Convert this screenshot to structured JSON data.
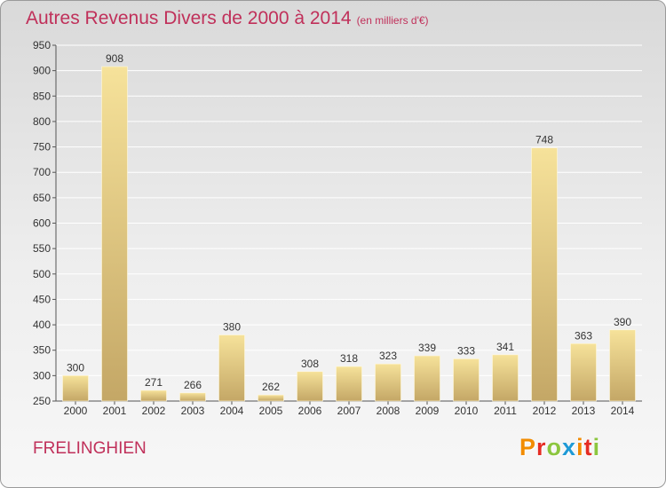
{
  "title": {
    "main": "Autres Revenus Divers de 2000 à 2014",
    "unit": "(en milliers d'€)"
  },
  "commune": "FRELINGHIEN",
  "logo": {
    "letters": [
      "P",
      "r",
      "o",
      "x",
      "i",
      "t",
      "i"
    ],
    "colors": [
      "#f28c00",
      "#e52d24",
      "#8cc63f",
      "#1f9ad6",
      "#f28c00",
      "#e52d24",
      "#8cc63f"
    ]
  },
  "colors": {
    "accent": "#c0305a",
    "bar_light": "#f6e29a",
    "bar_dark": "#c4a766",
    "grid": "#ffffff"
  },
  "chart_data": {
    "type": "bar",
    "categories": [
      "2000",
      "2001",
      "2002",
      "2003",
      "2004",
      "2005",
      "2006",
      "2007",
      "2008",
      "2009",
      "2010",
      "2011",
      "2012",
      "2013",
      "2014"
    ],
    "values": [
      300,
      908,
      271,
      266,
      380,
      262,
      308,
      318,
      323,
      339,
      333,
      341,
      748,
      363,
      390
    ],
    "ylim": [
      250,
      950
    ],
    "yticks": [
      250,
      300,
      350,
      400,
      450,
      500,
      550,
      600,
      650,
      700,
      750,
      800,
      850,
      900,
      950
    ],
    "grid": true,
    "data_labels": true
  }
}
